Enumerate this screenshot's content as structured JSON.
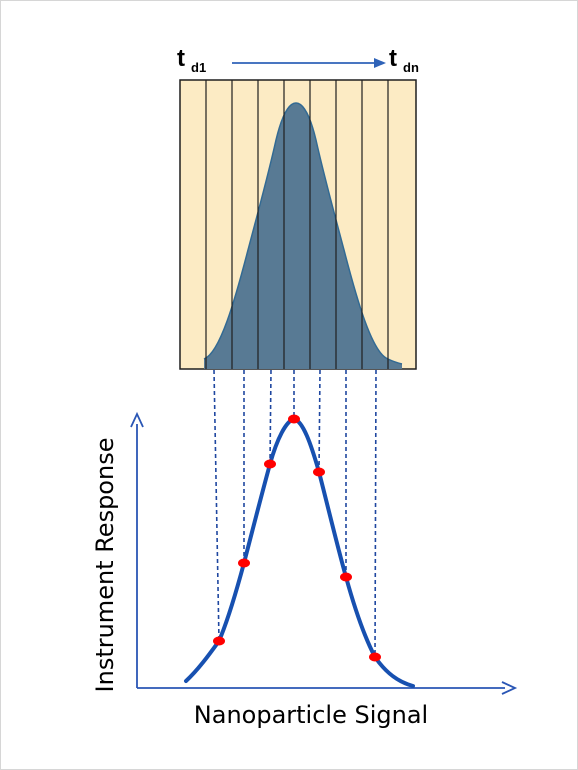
{
  "colors": {
    "panel_fill": "#fcebc4",
    "panel_line": "#1f1f1f",
    "gauss_fill": "#587a94",
    "gauss_edge": "#336a93",
    "curve": "#1750b0",
    "axis": "#2a56b5",
    "dashed": "#1f47a0",
    "marker": "#ff0000",
    "arrow": "#2f63b8"
  },
  "top_panel": {
    "start_label": {
      "main": "t",
      "sub": "d1"
    },
    "end_label": {
      "main": "t",
      "sub": "dn"
    }
  },
  "bottom_plot": {
    "x_axis_label": "Nanoparticle Signal",
    "y_axis_label": "Instrument Response"
  },
  "icons": {
    "time_arrow": "right-arrow-icon",
    "x_axis_arrow": "x-axis-arrowhead",
    "y_axis_arrow": "y-axis-arrowhead"
  }
}
